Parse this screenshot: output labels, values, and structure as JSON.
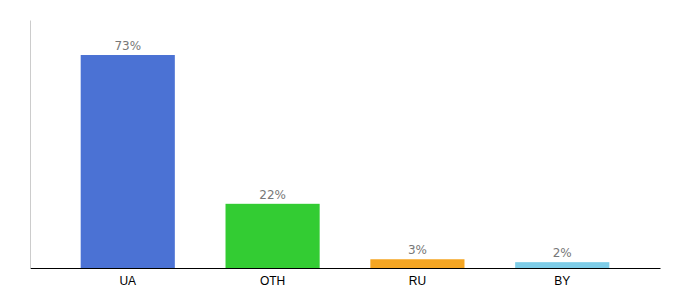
{
  "chart_data": {
    "type": "bar",
    "categories": [
      "UA",
      "OTH",
      "RU",
      "BY"
    ],
    "values": [
      73,
      22,
      3,
      2
    ],
    "value_labels": [
      "73%",
      "22%",
      "3%",
      "2%"
    ],
    "data_labels": true,
    "colors": [
      "#4b72d4",
      "#33cc33",
      "#f5a623",
      "#7ecde8"
    ],
    "ylim": [
      0,
      85
    ],
    "tick_labels": "x",
    "grid": false
  }
}
